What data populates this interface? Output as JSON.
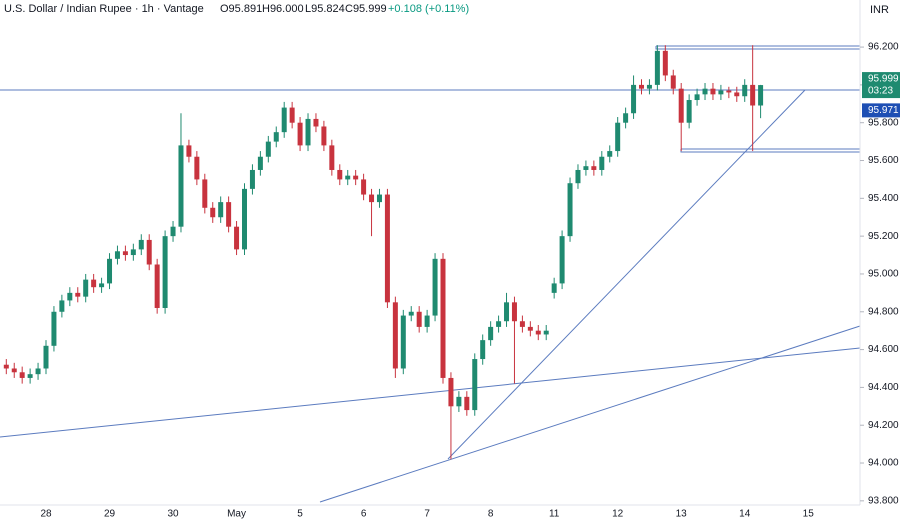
{
  "header": {
    "symbol": "U.S. Dollar / Indian Rupee · 1h · Vantage",
    "open": "O95.891",
    "high": "H96.000",
    "low": "L95.824",
    "close": "C95.999",
    "change": "+0.108 (+0.11%)",
    "currency": "INR"
  },
  "chart_data": {
    "type": "candlestick",
    "up_color": "#1f8a70",
    "down_color": "#c8333e",
    "ylim": [
      93.778,
      96.449
    ],
    "yticks": [
      {
        "value": 93.8,
        "label": "93.800"
      },
      {
        "value": 94.0,
        "label": "94.000"
      },
      {
        "value": 94.2,
        "label": "94.200"
      },
      {
        "value": 94.4,
        "label": "94.400"
      },
      {
        "value": 94.6,
        "label": "94.600"
      },
      {
        "value": 94.8,
        "label": "94.800"
      },
      {
        "value": 95.0,
        "label": "95.000"
      },
      {
        "value": 95.2,
        "label": "95.200"
      },
      {
        "value": 95.4,
        "label": "95.400"
      },
      {
        "value": 95.6,
        "label": "95.600"
      },
      {
        "value": 95.8,
        "label": "95.800"
      },
      {
        "value": 96.0,
        "label": "96.000"
      },
      {
        "value": 96.2,
        "label": "96.200"
      }
    ],
    "day_labels": [
      "28",
      "29",
      "30",
      "May",
      "5",
      "6",
      "7",
      "8",
      "11",
      "12",
      "13",
      "14",
      "15"
    ],
    "open": [
      94.52,
      94.5,
      94.48,
      94.45,
      94.47,
      94.5,
      94.62,
      94.8,
      94.86,
      94.9,
      94.88,
      94.97,
      94.93,
      94.95,
      95.08,
      95.12,
      95.1,
      95.13,
      95.18,
      95.05,
      94.82,
      95.2,
      95.25,
      95.68,
      95.62,
      95.5,
      95.35,
      95.3,
      95.38,
      95.25,
      95.13,
      95.45,
      95.55,
      95.62,
      95.7,
      95.75,
      95.88,
      95.8,
      95.68,
      95.82,
      95.78,
      95.68,
      95.55,
      95.5,
      95.52,
      95.5,
      95.42,
      95.38,
      95.42,
      94.85,
      94.5,
      94.78,
      94.8,
      94.72,
      94.78,
      95.08,
      94.45,
      94.3,
      94.35,
      94.28,
      94.55,
      94.65,
      94.72,
      94.75,
      94.85,
      94.75,
      94.72,
      94.7,
      94.68,
      94.9,
      94.95,
      95.2,
      95.48,
      95.55,
      95.57,
      95.55,
      95.62,
      95.65,
      95.8,
      95.85,
      96.0,
      95.98,
      96.0,
      96.18,
      96.05,
      95.98,
      95.8,
      95.92,
      95.95,
      95.98,
      95.95,
      95.97,
      95.96,
      95.94,
      96.0,
      95.891
    ],
    "high": [
      94.55,
      94.53,
      94.51,
      94.5,
      94.53,
      94.65,
      94.83,
      94.89,
      94.93,
      94.93,
      95.0,
      95.0,
      94.98,
      95.11,
      95.15,
      95.15,
      95.16,
      95.21,
      95.21,
      95.08,
      95.23,
      95.28,
      95.85,
      95.71,
      95.65,
      95.53,
      95.38,
      95.41,
      95.41,
      95.28,
      95.48,
      95.58,
      95.65,
      95.73,
      95.78,
      95.91,
      95.91,
      95.83,
      95.85,
      95.85,
      95.81,
      95.71,
      95.58,
      95.55,
      95.55,
      95.53,
      95.45,
      95.45,
      95.45,
      94.88,
      94.81,
      94.83,
      94.83,
      94.81,
      95.11,
      95.11,
      94.48,
      94.38,
      94.38,
      94.58,
      94.68,
      94.75,
      94.78,
      94.9,
      94.88,
      94.78,
      94.75,
      94.73,
      94.73,
      94.98,
      95.23,
      95.51,
      95.58,
      95.6,
      95.6,
      95.65,
      95.68,
      95.83,
      95.88,
      96.05,
      96.03,
      96.03,
      96.21,
      96.21,
      96.08,
      96.01,
      95.95,
      95.98,
      96.01,
      96.01,
      96.0,
      95.99,
      95.99,
      96.03,
      96.21,
      96.0
    ],
    "low": [
      94.47,
      94.45,
      94.42,
      94.42,
      94.44,
      94.47,
      94.59,
      94.77,
      94.83,
      94.85,
      94.85,
      94.9,
      94.9,
      94.92,
      95.05,
      95.07,
      95.07,
      95.1,
      95.02,
      94.79,
      94.79,
      95.17,
      95.22,
      95.59,
      95.47,
      95.32,
      95.27,
      95.27,
      95.22,
      95.1,
      95.1,
      95.42,
      95.52,
      95.59,
      95.67,
      95.72,
      95.77,
      95.65,
      95.65,
      95.75,
      95.65,
      95.52,
      95.47,
      95.47,
      95.47,
      95.39,
      95.2,
      95.35,
      94.82,
      94.45,
      94.47,
      94.75,
      94.69,
      94.69,
      94.75,
      94.42,
      94.02,
      94.27,
      94.25,
      94.25,
      94.52,
      94.62,
      94.69,
      94.72,
      94.42,
      94.69,
      94.67,
      94.65,
      94.65,
      94.87,
      94.92,
      95.17,
      95.45,
      95.52,
      95.52,
      95.52,
      95.59,
      95.62,
      95.77,
      95.82,
      95.95,
      95.95,
      95.97,
      96.02,
      95.95,
      95.65,
      95.77,
      95.89,
      95.92,
      95.92,
      95.92,
      95.93,
      95.91,
      95.91,
      95.65,
      95.824
    ],
    "close": [
      94.5,
      94.48,
      94.45,
      94.47,
      94.5,
      94.62,
      94.8,
      94.86,
      94.9,
      94.88,
      94.97,
      94.93,
      94.95,
      95.08,
      95.12,
      95.1,
      95.13,
      95.18,
      95.05,
      94.82,
      95.2,
      95.25,
      95.68,
      95.62,
      95.5,
      95.35,
      95.3,
      95.38,
      95.25,
      95.13,
      95.45,
      95.55,
      95.62,
      95.7,
      95.75,
      95.88,
      95.8,
      95.68,
      95.82,
      95.78,
      95.68,
      95.55,
      95.5,
      95.52,
      95.5,
      95.42,
      95.38,
      95.42,
      94.85,
      94.5,
      94.78,
      94.8,
      94.72,
      94.78,
      95.08,
      94.45,
      94.3,
      94.35,
      94.28,
      94.55,
      94.65,
      94.72,
      94.75,
      94.85,
      94.75,
      94.72,
      94.7,
      94.68,
      94.7,
      94.95,
      95.2,
      95.48,
      95.55,
      95.57,
      95.55,
      95.62,
      95.65,
      95.8,
      95.85,
      96.0,
      95.98,
      96.0,
      96.18,
      96.05,
      95.98,
      95.8,
      95.92,
      95.95,
      95.98,
      95.95,
      95.97,
      95.96,
      95.94,
      96.0,
      95.891,
      95.999
    ],
    "last_price": {
      "value": 95.999,
      "label": "95.999"
    },
    "countdown": "03:23",
    "bid": {
      "value": 95.971,
      "label": "95.971"
    }
  }
}
